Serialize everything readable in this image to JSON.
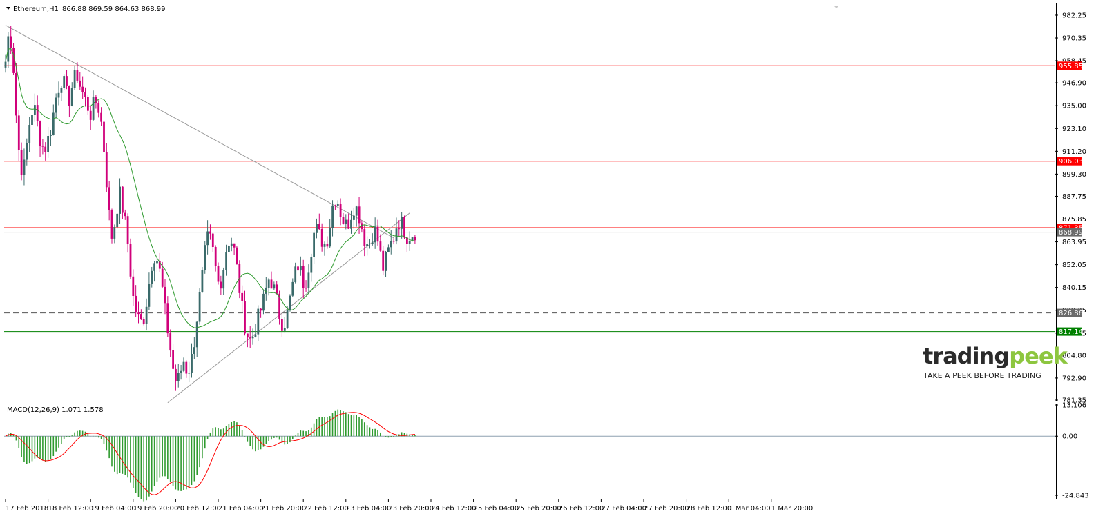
{
  "header": {
    "symbol": "Ethereum,H1",
    "ohlc": "866.88 869.59 864.63 868.99"
  },
  "indicator": {
    "label": "MACD(12,26,9) 1.071 1.578"
  },
  "colors": {
    "bull": "#3a6a6a",
    "bear": "#d0007a",
    "ma": "#2e9a2e",
    "resistance": "#ff0000",
    "support": "#008000",
    "trend": "#999999",
    "histogram": "#2f9a2f",
    "signal": "#ff0000",
    "price_tag": "#696969"
  },
  "watermark": {
    "brand_dark": "trading",
    "brand_green": "peek",
    "tagline": "TAKE A PEEK BEFORE TRADING"
  },
  "chart_data": [
    {
      "type": "candlestick",
      "interval": "H1",
      "ylim": [
        781.35,
        988.0
      ],
      "y_ticks": [
        "982.25",
        "970.35",
        "958.45",
        "946.90",
        "935.00",
        "923.10",
        "911.20",
        "899.30",
        "887.75",
        "875.85",
        "863.95",
        "852.05",
        "840.15",
        "828.25",
        "816.35",
        "804.80",
        "792.90",
        "781.35"
      ],
      "x_ticks": [
        "17 Feb 2018",
        "18 Feb 12:00",
        "19 Feb 04:00",
        "19 Feb 20:00",
        "20 Feb 12:00",
        "21 Feb 04:00",
        "21 Feb 20:00",
        "22 Feb 12:00",
        "23 Feb 04:00",
        "23 Feb 20:00",
        "24 Feb 12:00",
        "25 Feb 04:00",
        "25 Feb 20:00",
        "26 Feb 12:00",
        "27 Feb 04:00",
        "27 Feb 20:00",
        "28 Feb 12:00",
        "1 Mar 04:00",
        "1 Mar 20:00"
      ],
      "candles_per_tick": 16,
      "close_path": [
        958,
        975,
        962,
        930,
        905,
        900,
        915,
        930,
        935,
        925,
        915,
        912,
        918,
        925,
        938,
        945,
        950,
        942,
        938,
        948,
        952,
        945,
        940,
        935,
        930,
        938,
        935,
        925,
        905,
        880,
        865,
        878,
        890,
        880,
        870,
        850,
        832,
        825,
        822,
        825,
        838,
        852,
        858,
        852,
        840,
        825,
        812,
        798,
        790,
        795,
        802,
        796,
        800,
        812,
        828,
        842,
        858,
        868,
        862,
        850,
        840,
        848,
        860,
        866,
        862,
        850,
        835,
        822,
        815,
        812,
        818,
        825,
        830,
        838,
        845,
        842,
        835,
        825,
        820,
        825,
        835,
        845,
        852,
        848,
        840,
        850,
        862,
        872,
        868,
        864,
        862,
        872,
        885,
        888,
        880,
        874,
        872,
        878,
        883,
        880,
        872,
        864,
        862,
        868,
        870,
        860,
        850,
        856,
        862,
        866,
        874,
        875,
        870,
        866,
        868,
        869
      ],
      "ma_period": 20,
      "levels": [
        {
          "value": 955.85,
          "label": "955.85",
          "style": "resistance"
        },
        {
          "value": 906.03,
          "label": "906.03",
          "style": "resistance"
        },
        {
          "value": 871.35,
          "label": "871.35",
          "style": "resistance"
        },
        {
          "value": 868.99,
          "label": "868.99",
          "style": "current"
        },
        {
          "value": 826.86,
          "label": "826.86",
          "style": "dashed"
        },
        {
          "value": 817.14,
          "label": "817.14",
          "style": "support"
        }
      ],
      "trendlines": [
        {
          "from_candle": 0,
          "from_value": 977.0,
          "to_candle": 146,
          "to_value": 866.0
        },
        {
          "from_candle": 61,
          "from_value": 780.0,
          "to_candle": 152,
          "to_value": 879.0
        }
      ]
    },
    {
      "type": "macd",
      "fast": 12,
      "slow": 26,
      "signal": 9,
      "value": 1.071,
      "signal_value": 1.578,
      "ylim": [
        -26.0,
        13.106
      ],
      "y_ticks": [
        "13.106",
        "0.00",
        "-24.843"
      ]
    }
  ]
}
